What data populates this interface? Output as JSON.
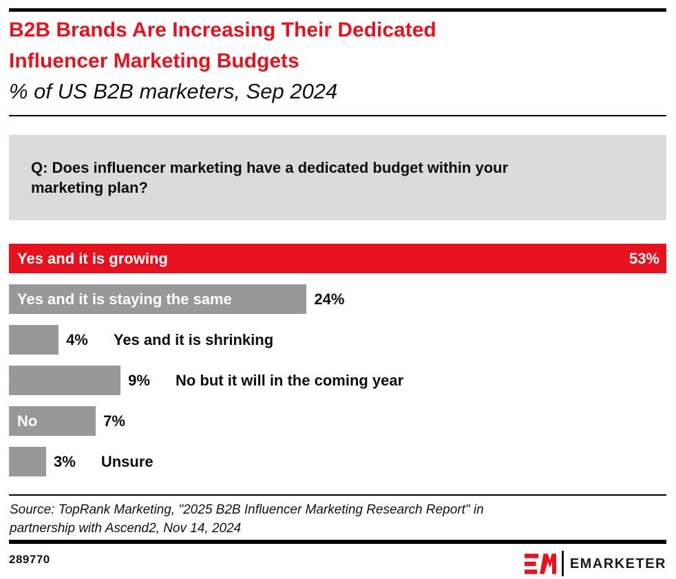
{
  "colors": {
    "accent_red": "#E7121D",
    "bar_gray": "#989898",
    "question_bg": "#DBDBDB",
    "rule_black": "#000000"
  },
  "header": {
    "title_lines": [
      "B2B Brands Are Increasing Their Dedicated",
      "Influencer Marketing Budgets"
    ],
    "subtitle": "% of US B2B marketers, Sep 2024"
  },
  "question_box": {
    "lines": [
      "Q: Does influencer marketing have a dedicated budget within your",
      "marketing plan?"
    ]
  },
  "chart_data": {
    "type": "bar",
    "orientation": "horizontal",
    "title": "B2B Brands Are Increasing Their Dedicated Influencer Marketing Budgets",
    "subtitle": "% of US B2B marketers, Sep 2024",
    "question": "Q: Does influencer marketing have a dedicated budget within your marketing plan?",
    "unit": "% of respondents",
    "axis_max": 53,
    "grid": false,
    "categories": [
      "Yes and it is growing",
      "Yes and it is staying the same",
      "Yes and it is shrinking",
      "No but it will in the coming year",
      "No",
      "Unsure"
    ],
    "values": [
      53,
      24,
      4,
      9,
      7,
      3
    ],
    "rows": [
      {
        "label": "Yes and it is growing",
        "value": 53,
        "value_label": "53%",
        "bar_color": "#E7121D",
        "label_position": "inside",
        "value_position": "inside"
      },
      {
        "label": "Yes and it is staying the same",
        "value": 24,
        "value_label": "24%",
        "bar_color": "#989898",
        "label_position": "inside",
        "value_position": "outside"
      },
      {
        "label": "Yes and it is shrinking",
        "value": 4,
        "value_label": "4%",
        "bar_color": "#989898",
        "label_position": "outside",
        "value_position": "outside"
      },
      {
        "label": "No but it will in the coming year",
        "value": 9,
        "value_label": "9%",
        "bar_color": "#989898",
        "label_position": "outside",
        "value_position": "outside"
      },
      {
        "label": "No",
        "value": 7,
        "value_label": "7%",
        "bar_color": "#989898",
        "label_position": "inside",
        "value_position": "outside"
      },
      {
        "label": "Unsure",
        "value": 3,
        "value_label": "3%",
        "bar_color": "#989898",
        "label_position": "outside",
        "value_position": "outside"
      }
    ]
  },
  "source": {
    "lines": [
      "Source: TopRank Marketing, \"2025 B2B Influencer Marketing Research Report\" in",
      "partnership with Ascend2, Nov 14, 2024"
    ]
  },
  "footer": {
    "chart_id": "289770",
    "brand": "EMARKETER"
  }
}
